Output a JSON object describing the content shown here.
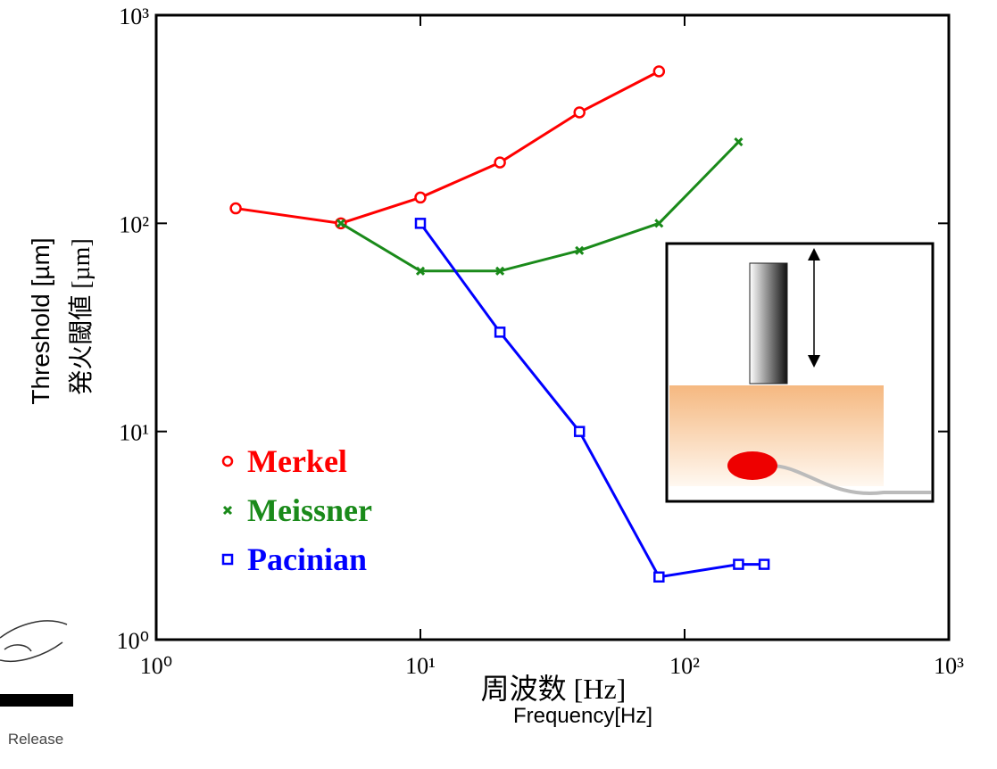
{
  "chart_data": {
    "type": "line",
    "x_label": "周波数 [Hz]",
    "x_label_en": "Frequency[Hz]",
    "y_label": "発火閾値 [µm]",
    "y_label_en": "Threshold [µm]",
    "side_note": "Release",
    "xscale": "log",
    "yscale": "log",
    "xlim": [
      1,
      1000
    ],
    "ylim": [
      1,
      1000
    ],
    "xticks": [
      {
        "value": 1,
        "label": "10⁰"
      },
      {
        "value": 10,
        "label": "10¹"
      },
      {
        "value": 100,
        "label": "10²"
      },
      {
        "value": 1000,
        "label": "10³"
      }
    ],
    "yticks": [
      {
        "value": 1,
        "label": "10⁰"
      },
      {
        "value": 10,
        "label": "10¹"
      },
      {
        "value": 100,
        "label": "10²"
      },
      {
        "value": 1000,
        "label": "10³"
      }
    ],
    "legend": "center left",
    "series": [
      {
        "name": "Merkel",
        "color": "#ff0000",
        "marker": "circle",
        "x": [
          2,
          5,
          10,
          20,
          40,
          80
        ],
        "values": [
          118,
          100,
          133,
          196,
          341,
          537
        ]
      },
      {
        "name": "Meissner",
        "color": "#1a8a1a",
        "marker": "x",
        "x": [
          5,
          10,
          20,
          40,
          80,
          160
        ],
        "values": [
          100,
          59,
          59,
          74,
          100,
          246
        ]
      },
      {
        "name": "Pacinian",
        "color": "#0000ff",
        "marker": "square",
        "x": [
          10,
          20,
          40,
          80,
          160,
          200
        ],
        "values": [
          100,
          30,
          10,
          2,
          2.3,
          2.3
        ]
      }
    ]
  }
}
